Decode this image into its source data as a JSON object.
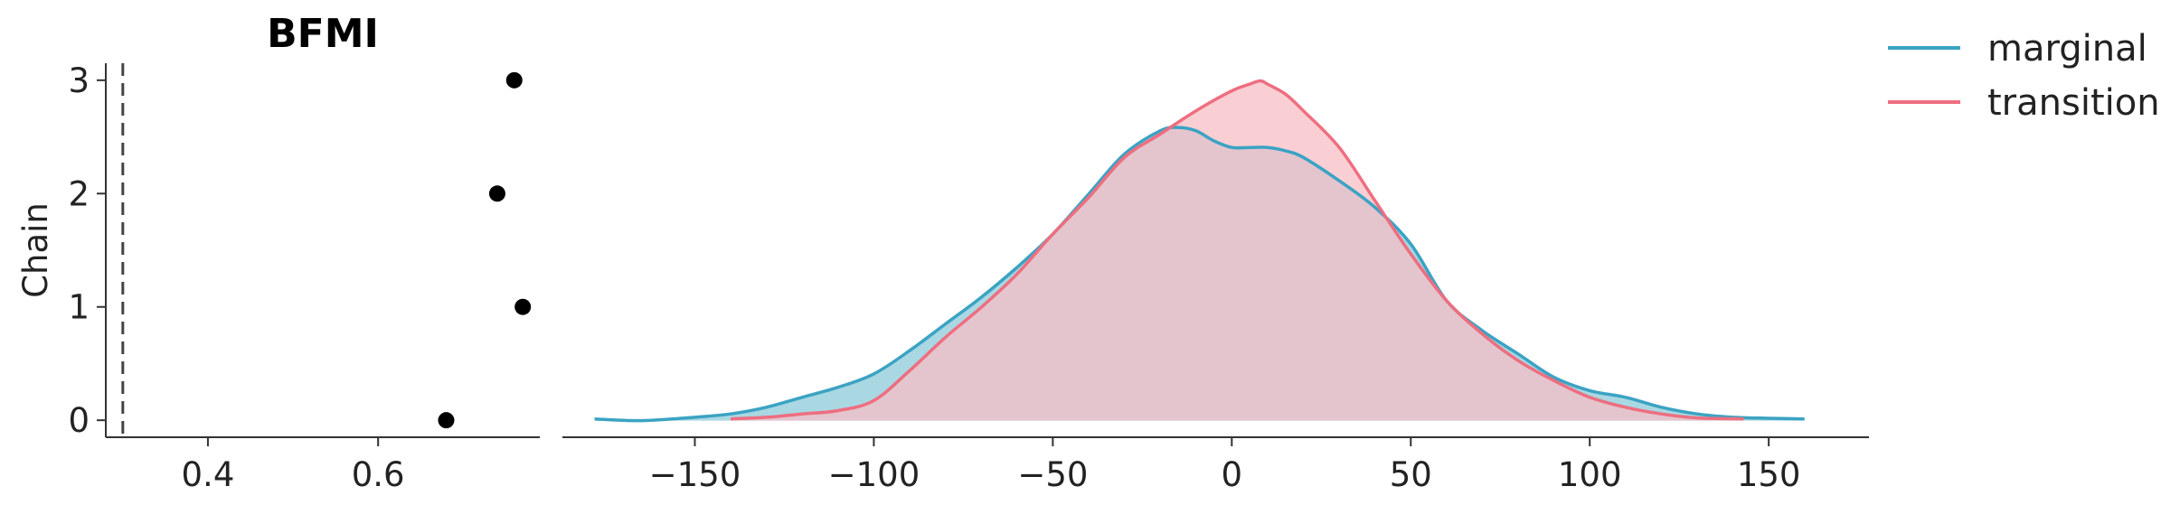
{
  "chart_data": [
    {
      "type": "scatter",
      "title": "BFMI",
      "ylabel": "Chain",
      "xlabel": "",
      "xlim": [
        0.28,
        0.79
      ],
      "ylim": [
        -0.15,
        3.15
      ],
      "xticks": [
        0.4,
        0.6
      ],
      "xtick_labels": [
        "0.4",
        "0.6"
      ],
      "yticks": [
        0,
        1,
        2,
        3
      ],
      "ytick_labels": [
        "0",
        "1",
        "2",
        "3"
      ],
      "reference_line": 0.3,
      "points": [
        {
          "chain": 0,
          "bfmi": 0.68
        },
        {
          "chain": 1,
          "bfmi": 0.77
        },
        {
          "chain": 2,
          "bfmi": 0.74
        },
        {
          "chain": 3,
          "bfmi": 0.76
        }
      ],
      "colors": {
        "points": "#000000",
        "reference_line": "#444444"
      }
    },
    {
      "type": "area",
      "title": "",
      "xlabel": "",
      "ylabel": "",
      "xlim": [
        -187,
        178
      ],
      "ylim": [
        -0.05,
        1.1
      ],
      "xticks": [
        -150,
        -100,
        -50,
        0,
        50,
        100,
        150
      ],
      "xtick_labels": [
        "−150",
        "−100",
        "−50",
        "0",
        "50",
        "100",
        "150"
      ],
      "legend": "top-right",
      "series": [
        {
          "name": "marginal",
          "color": "#3ba3c3",
          "fill": "#a9d8e3",
          "x": [
            -178,
            -165,
            -150,
            -140,
            -130,
            -120,
            -110,
            -100,
            -90,
            -80,
            -70,
            -60,
            -50,
            -40,
            -30,
            -20,
            -15,
            -10,
            -5,
            0,
            5,
            10,
            15,
            20,
            30,
            40,
            50,
            60,
            70,
            80,
            90,
            100,
            110,
            120,
            130,
            140,
            150,
            160
          ],
          "y": [
            0.005,
            0.0,
            0.01,
            0.02,
            0.04,
            0.07,
            0.1,
            0.14,
            0.21,
            0.29,
            0.37,
            0.46,
            0.56,
            0.68,
            0.8,
            0.87,
            0.88,
            0.87,
            0.84,
            0.82,
            0.82,
            0.82,
            0.81,
            0.79,
            0.72,
            0.64,
            0.53,
            0.36,
            0.27,
            0.2,
            0.13,
            0.09,
            0.07,
            0.04,
            0.02,
            0.01,
            0.007,
            0.005
          ]
        },
        {
          "name": "transition",
          "color": "#ee6e80",
          "fill": "#f8bfc6",
          "x": [
            -140,
            -130,
            -120,
            -110,
            -100,
            -90,
            -80,
            -70,
            -60,
            -50,
            -40,
            -30,
            -20,
            -10,
            0,
            5,
            8,
            10,
            15,
            20,
            30,
            40,
            50,
            60,
            70,
            80,
            90,
            100,
            110,
            120,
            130,
            143
          ],
          "y": [
            0.005,
            0.01,
            0.02,
            0.03,
            0.06,
            0.15,
            0.25,
            0.34,
            0.44,
            0.56,
            0.67,
            0.79,
            0.86,
            0.93,
            0.99,
            1.01,
            1.02,
            1.01,
            0.98,
            0.93,
            0.82,
            0.66,
            0.5,
            0.36,
            0.26,
            0.18,
            0.12,
            0.07,
            0.04,
            0.02,
            0.008,
            0.005
          ]
        }
      ]
    }
  ]
}
